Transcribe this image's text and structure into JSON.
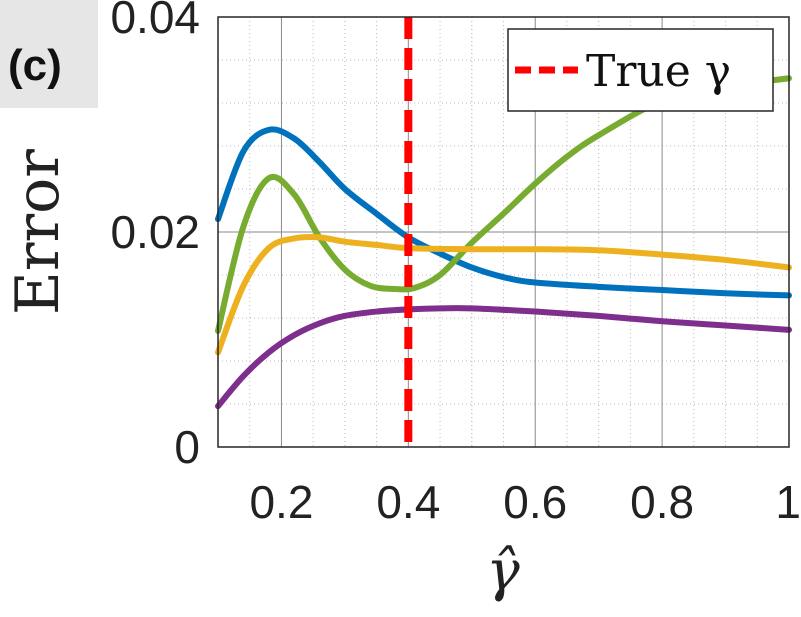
{
  "panel_label": "(c)",
  "chart_data": {
    "type": "line",
    "title": "",
    "xlabel": "γ̂",
    "ylabel": "Error",
    "xlim": [
      0.1,
      1.0
    ],
    "ylim": [
      0,
      0.04
    ],
    "x_ticks": [
      0.2,
      0.4,
      0.6,
      0.8,
      1.0
    ],
    "x_tick_labels": [
      "0.2",
      "0.4",
      "0.6",
      "0.8",
      "1"
    ],
    "y_ticks": [
      0,
      0.02,
      0.04
    ],
    "y_tick_labels": [
      "0",
      "0.02",
      "0.04"
    ],
    "grid": "major and minor, dotted minor",
    "legend_position": "top-right",
    "colors": {
      "blue": "#0072BD",
      "green": "#77AC30",
      "yellow": "#EDB120",
      "purple": "#7E2F8E",
      "true_line": "#FF0000"
    },
    "series": [
      {
        "color": "#0072BD",
        "x": [
          0.1,
          0.14,
          0.18,
          0.22,
          0.26,
          0.3,
          0.35,
          0.4,
          0.45,
          0.5,
          0.55,
          0.6,
          0.7,
          0.8,
          0.9,
          1.0
        ],
        "y": [
          0.0212,
          0.0275,
          0.0295,
          0.0287,
          0.0265,
          0.024,
          0.0217,
          0.0195,
          0.018,
          0.0167,
          0.0158,
          0.0153,
          0.0149,
          0.0146,
          0.0143,
          0.0141
        ]
      },
      {
        "color": "#77AC30",
        "x": [
          0.1,
          0.14,
          0.18,
          0.22,
          0.26,
          0.3,
          0.34,
          0.38,
          0.41,
          0.45,
          0.5,
          0.55,
          0.6,
          0.65,
          0.7,
          0.8,
          0.9,
          1.0
        ],
        "y": [
          0.0108,
          0.0205,
          0.025,
          0.0235,
          0.0195,
          0.0165,
          0.015,
          0.0147,
          0.0148,
          0.016,
          0.019,
          0.0217,
          0.0245,
          0.027,
          0.029,
          0.0322,
          0.0335,
          0.0343
        ]
      },
      {
        "color": "#EDB120",
        "x": [
          0.1,
          0.14,
          0.18,
          0.22,
          0.26,
          0.3,
          0.35,
          0.4,
          0.5,
          0.6,
          0.7,
          0.8,
          0.9,
          1.0
        ],
        "y": [
          0.0088,
          0.015,
          0.0185,
          0.0194,
          0.0195,
          0.0191,
          0.0188,
          0.0185,
          0.0184,
          0.0184,
          0.0183,
          0.0179,
          0.0174,
          0.0167
        ]
      },
      {
        "color": "#7E2F8E",
        "x": [
          0.1,
          0.14,
          0.18,
          0.22,
          0.26,
          0.3,
          0.35,
          0.4,
          0.45,
          0.5,
          0.6,
          0.7,
          0.8,
          0.9,
          1.0
        ],
        "y": [
          0.0038,
          0.0066,
          0.0088,
          0.0104,
          0.0115,
          0.0122,
          0.0126,
          0.0128,
          0.0129,
          0.0129,
          0.0126,
          0.0122,
          0.0117,
          0.0113,
          0.0109
        ]
      }
    ],
    "vline": {
      "x": 0.4,
      "label": "True γ",
      "color": "#FF0000",
      "style": "dashed"
    }
  }
}
